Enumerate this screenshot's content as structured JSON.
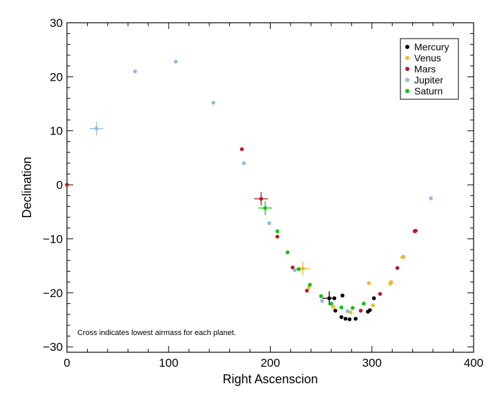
{
  "chart_data": {
    "type": "scatter",
    "title": "",
    "xlabel": "Right Ascenscion",
    "ylabel": "Declination",
    "xlim": [
      0,
      400
    ],
    "ylim": [
      -31,
      30
    ],
    "xticks": [
      0,
      100,
      200,
      300,
      400
    ],
    "yticks": [
      -30,
      -20,
      -10,
      0,
      10,
      20,
      30
    ],
    "xtick_labels": [
      "0",
      "100",
      "200",
      "300",
      "400"
    ],
    "ytick_labels": [
      "−30",
      "−20",
      "−10",
      "0",
      "10",
      "20",
      "30"
    ],
    "grid": false,
    "legend_position": "top-right",
    "annotation": "Cross indicates lowest airmass for each planet.",
    "series": [
      {
        "name": "Mercury",
        "color": "#000000",
        "points": [
          [
            270,
            -24.5
          ],
          [
            274,
            -24.8
          ],
          [
            278,
            -24.9
          ],
          [
            284,
            -24.8
          ],
          [
            264,
            -23.3
          ],
          [
            263,
            -21
          ],
          [
            271,
            -20.5
          ],
          [
            296,
            -23.5
          ],
          [
            298,
            -23.2
          ],
          [
            302,
            -21
          ]
        ],
        "best": [
          258,
          -21
        ]
      },
      {
        "name": "Venus",
        "color": "#f5b82a",
        "points": [
          [
            238,
            -19
          ],
          [
            262,
            -22.6
          ],
          [
            279,
            -23.6
          ],
          [
            297,
            -18.2
          ],
          [
            301,
            -22.3
          ],
          [
            318,
            -18.3
          ],
          [
            319,
            -18.0
          ],
          [
            330,
            -13.4
          ],
          [
            331,
            -13.3
          ]
        ],
        "best": [
          232,
          -15.5
        ]
      },
      {
        "name": "Mars",
        "color": "#b81c24",
        "points": [
          [
            0,
            0
          ],
          [
            172,
            6.6
          ],
          [
            207,
            -9.6
          ],
          [
            222,
            -15.3
          ],
          [
            236,
            -19.6
          ],
          [
            289,
            -23.3
          ],
          [
            308,
            -20.2
          ],
          [
            325,
            -15.4
          ],
          [
            342,
            -8.6
          ],
          [
            343,
            -8.5
          ]
        ],
        "best": [
          191,
          -2.6
        ]
      },
      {
        "name": "Jupiter",
        "color": "#8fbbe3",
        "points": [
          [
            67,
            21
          ],
          [
            107,
            22.8
          ],
          [
            144,
            15.2
          ],
          [
            174,
            4
          ],
          [
            199,
            -7.1
          ],
          [
            224,
            -15.8
          ],
          [
            251,
            -21.5
          ],
          [
            276,
            -23.4
          ],
          [
            358,
            -2.5
          ]
        ],
        "best": [
          29,
          10.4
        ]
      },
      {
        "name": "Saturn",
        "color": "#11c218",
        "points": [
          [
            207,
            -8.6
          ],
          [
            217,
            -12.5
          ],
          [
            228,
            -15.6
          ],
          [
            239,
            -18.5
          ],
          [
            250,
            -20.6
          ],
          [
            260,
            -22
          ],
          [
            270,
            -22.7
          ],
          [
            281,
            -22.8
          ],
          [
            292,
            -22
          ]
        ],
        "best": [
          195,
          -4.3
        ]
      }
    ]
  }
}
